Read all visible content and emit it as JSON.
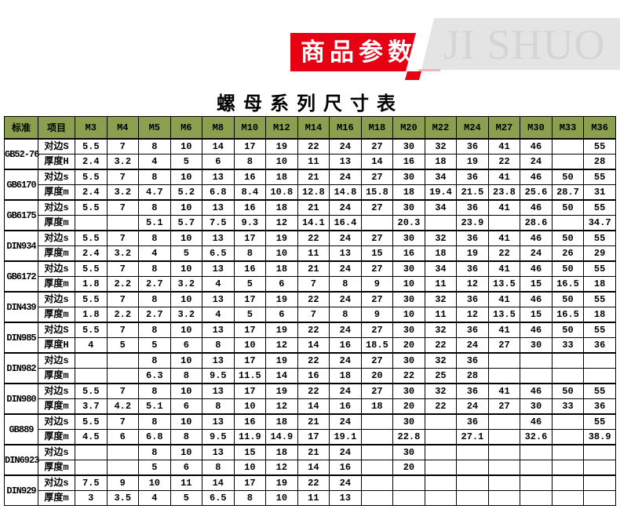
{
  "banner": {
    "label": "商品参数",
    "watermark": "JI SHUO",
    "red_color": "#e60012",
    "gray_bg": "#e4e4e4",
    "watermark_color": "#d5d5d5"
  },
  "title": "螺母系列尺寸表",
  "table": {
    "header_bg": "#8c9f4f",
    "border_color": "#000000",
    "col_headers": [
      "标准",
      "项目",
      "M3",
      "M4",
      "M5",
      "M6",
      "M8",
      "M10",
      "M12",
      "M14",
      "M16",
      "M18",
      "M20",
      "M22",
      "M24",
      "M27",
      "M30",
      "M33",
      "M36"
    ],
    "groups": [
      {
        "standard": "GB52-76",
        "rows": [
          {
            "label": "对边S",
            "values": [
              "5.5",
              "7",
              "8",
              "10",
              "14",
              "17",
              "19",
              "22",
              "24",
              "27",
              "30",
              "32",
              "36",
              "41",
              "46",
              "",
              "55"
            ]
          },
          {
            "label": "厚度H",
            "values": [
              "2.4",
              "3.2",
              "4",
              "5",
              "6",
              "8",
              "10",
              "11",
              "13",
              "14",
              "16",
              "18",
              "19",
              "22",
              "24",
              "",
              "28"
            ]
          }
        ]
      },
      {
        "standard": "GB6170",
        "rows": [
          {
            "label": "对边s",
            "values": [
              "5.5",
              "7",
              "8",
              "10",
              "13",
              "16",
              "18",
              "21",
              "24",
              "27",
              "30",
              "34",
              "36",
              "41",
              "46",
              "50",
              "55"
            ]
          },
          {
            "label": "厚度m",
            "values": [
              "2.4",
              "3.2",
              "4.7",
              "5.2",
              "6.8",
              "8.4",
              "10.8",
              "12.8",
              "14.8",
              "15.8",
              "18",
              "19.4",
              "21.5",
              "23.8",
              "25.6",
              "28.7",
              "31"
            ]
          }
        ]
      },
      {
        "standard": "GB6175",
        "rows": [
          {
            "label": "对边s",
            "values": [
              "5.5",
              "7",
              "8",
              "10",
              "13",
              "16",
              "18",
              "21",
              "24",
              "27",
              "30",
              "34",
              "36",
              "41",
              "46",
              "50",
              "55"
            ]
          },
          {
            "label": "厚度m",
            "values": [
              "",
              "",
              "5.1",
              "5.7",
              "7.5",
              "9.3",
              "12",
              "14.1",
              "16.4",
              "",
              "20.3",
              "",
              "23.9",
              "",
              "28.6",
              "",
              "34.7"
            ]
          }
        ]
      },
      {
        "standard": "DIN934",
        "rows": [
          {
            "label": "对边s",
            "values": [
              "5.5",
              "7",
              "8",
              "10",
              "13",
              "17",
              "19",
              "22",
              "24",
              "27",
              "30",
              "32",
              "36",
              "41",
              "46",
              "50",
              "55"
            ]
          },
          {
            "label": "厚度m",
            "values": [
              "2.4",
              "3.2",
              "4",
              "5",
              "6.5",
              "8",
              "10",
              "11",
              "13",
              "15",
              "16",
              "18",
              "19",
              "22",
              "24",
              "26",
              "29"
            ]
          }
        ]
      },
      {
        "standard": "GB6172",
        "rows": [
          {
            "label": "对边s",
            "values": [
              "5.5",
              "7",
              "8",
              "10",
              "13",
              "16",
              "18",
              "21",
              "24",
              "27",
              "30",
              "34",
              "36",
              "41",
              "46",
              "50",
              "55"
            ]
          },
          {
            "label": "厚度m",
            "values": [
              "1.8",
              "2.2",
              "2.7",
              "3.2",
              "4",
              "5",
              "6",
              "7",
              "8",
              "9",
              "10",
              "11",
              "12",
              "13.5",
              "15",
              "16.5",
              "18"
            ]
          }
        ]
      },
      {
        "standard": "DIN439",
        "rows": [
          {
            "label": "对边s",
            "values": [
              "5.5",
              "7",
              "8",
              "10",
              "13",
              "17",
              "19",
              "22",
              "24",
              "27",
              "30",
              "32",
              "36",
              "41",
              "46",
              "50",
              "55"
            ]
          },
          {
            "label": "厚度m",
            "values": [
              "1.8",
              "2.2",
              "2.7",
              "3.2",
              "4",
              "5",
              "6",
              "7",
              "8",
              "9",
              "10",
              "11",
              "12",
              "13.5",
              "15",
              "16.5",
              "18"
            ]
          }
        ]
      },
      {
        "standard": "DIN985",
        "rows": [
          {
            "label": "对边S",
            "values": [
              "5.5",
              "7",
              "8",
              "10",
              "13",
              "17",
              "19",
              "22",
              "24",
              "27",
              "30",
              "32",
              "36",
              "41",
              "46",
              "50",
              "55"
            ]
          },
          {
            "label": "厚度H",
            "values": [
              "4",
              "5",
              "5",
              "6",
              "8",
              "10",
              "12",
              "14",
              "16",
              "18.5",
              "20",
              "22",
              "24",
              "27",
              "30",
              "33",
              "36"
            ]
          }
        ]
      },
      {
        "standard": "DIN982",
        "rows": [
          {
            "label": "对边s",
            "values": [
              "",
              "",
              "8",
              "10",
              "13",
              "17",
              "19",
              "22",
              "24",
              "27",
              "30",
              "32",
              "36",
              "",
              "",
              "",
              ""
            ]
          },
          {
            "label": "厚度m",
            "values": [
              "",
              "",
              "6.3",
              "8",
              "9.5",
              "11.5",
              "14",
              "16",
              "18",
              "20",
              "22",
              "25",
              "28",
              "",
              "",
              "",
              ""
            ]
          }
        ]
      },
      {
        "standard": "DIN980",
        "rows": [
          {
            "label": "对边s",
            "values": [
              "5.5",
              "7",
              "8",
              "10",
              "13",
              "17",
              "19",
              "22",
              "24",
              "27",
              "30",
              "32",
              "36",
              "41",
              "46",
              "50",
              "55"
            ]
          },
          {
            "label": "厚度m",
            "values": [
              "3.7",
              "4.2",
              "5.1",
              "6",
              "8",
              "10",
              "12",
              "14",
              "16",
              "18",
              "20",
              "22",
              "24",
              "27",
              "30",
              "33",
              "36"
            ]
          }
        ]
      },
      {
        "standard": "GB889",
        "rows": [
          {
            "label": "对边s",
            "values": [
              "5.5",
              "7",
              "8",
              "10",
              "13",
              "16",
              "18",
              "21",
              "24",
              "",
              "30",
              "",
              "36",
              "",
              "46",
              "",
              "55"
            ]
          },
          {
            "label": "厚度m",
            "values": [
              "4.5",
              "6",
              "6.8",
              "8",
              "9.5",
              "11.9",
              "14.9",
              "17",
              "19.1",
              "",
              "22.8",
              "",
              "27.1",
              "",
              "32.6",
              "",
              "38.9"
            ]
          }
        ]
      },
      {
        "standard": "DIN6923",
        "rows": [
          {
            "label": "对边s",
            "values": [
              "",
              "",
              "8",
              "10",
              "13",
              "15",
              "18",
              "21",
              "24",
              "",
              "30",
              "",
              "",
              "",
              "",
              "",
              ""
            ]
          },
          {
            "label": "厚度m",
            "values": [
              "",
              "",
              "5",
              "6",
              "8",
              "10",
              "12",
              "14",
              "16",
              "",
              "20",
              "",
              "",
              "",
              "",
              "",
              ""
            ]
          }
        ]
      },
      {
        "standard": "DIN929",
        "rows": [
          {
            "label": "对边s",
            "values": [
              "7.5",
              "9",
              "10",
              "11",
              "14",
              "17",
              "19",
              "22",
              "24",
              "",
              "",
              "",
              "",
              "",
              "",
              "",
              ""
            ]
          },
          {
            "label": "厚度m",
            "values": [
              "3",
              "3.5",
              "4",
              "5",
              "6.5",
              "8",
              "10",
              "11",
              "13",
              "",
              "",
              "",
              "",
              "",
              "",
              "",
              ""
            ]
          }
        ]
      }
    ]
  }
}
